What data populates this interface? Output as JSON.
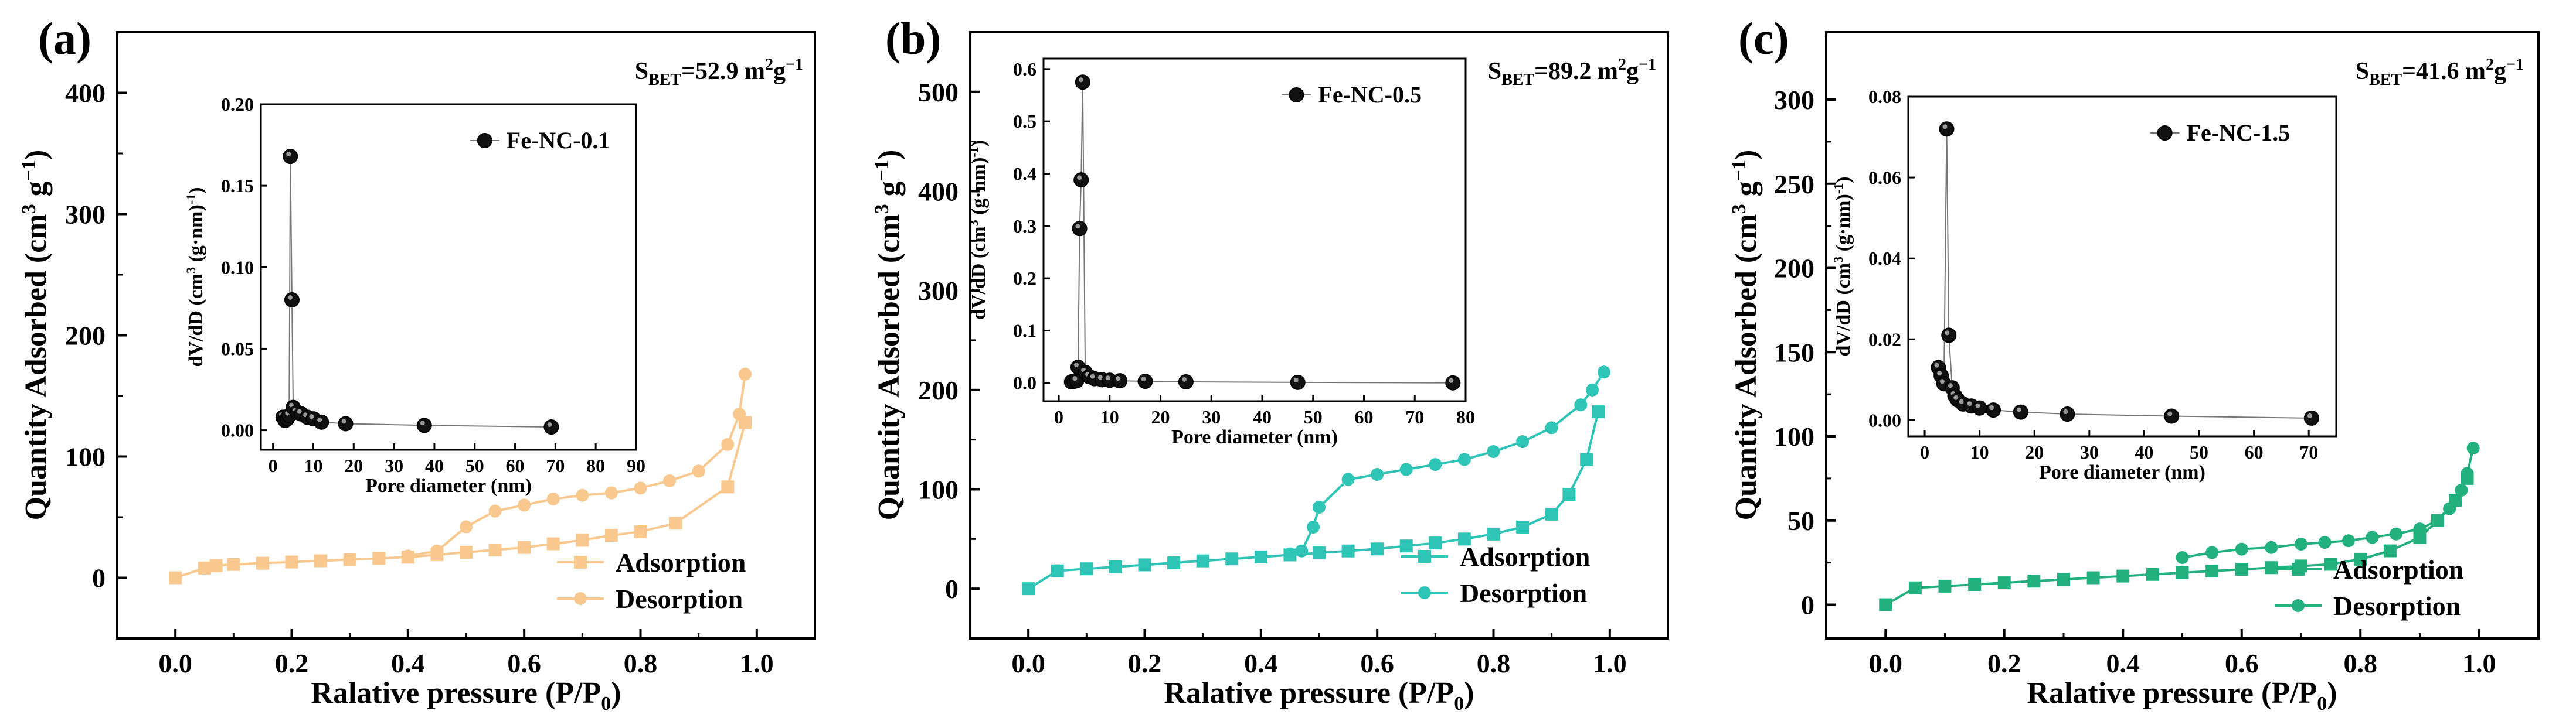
{
  "chart_data": [
    {
      "type": "line",
      "panel_label": "(a)",
      "sbet": {
        "prefix": "S",
        "sub": "BET",
        "value": "=52.9 m",
        "sup": "2",
        "suffix": "g",
        "sup2": "−1"
      },
      "xlabel": {
        "text": "Ralative pressure (P/P",
        "sub": "0",
        "tail": ")"
      },
      "ylabel": {
        "text": "Quantity Adsorbed (cm",
        "sup": "3",
        "mid": " g",
        "sup2": "−1",
        "tail": ")"
      },
      "xlim": [
        -0.1,
        1.1
      ],
      "ylim": [
        -50,
        450
      ],
      "xticks": [
        0.0,
        0.2,
        0.4,
        0.6,
        0.8,
        1.0
      ],
      "xtick_labels": [
        "0.0",
        "0.2",
        "0.4",
        "0.6",
        "0.8",
        "1.0"
      ],
      "yticks": [
        0,
        100,
        200,
        300,
        400
      ],
      "ytick_labels": [
        "0",
        "100",
        "200",
        "300",
        "400"
      ],
      "series": [
        {
          "name": "Adsorption",
          "marker": "square",
          "color": "#F9C88F",
          "x": [
            0.0,
            0.05,
            0.07,
            0.1,
            0.15,
            0.2,
            0.25,
            0.3,
            0.35,
            0.4,
            0.45,
            0.5,
            0.55,
            0.6,
            0.65,
            0.7,
            0.75,
            0.8,
            0.86,
            0.95,
            0.98
          ],
          "y": [
            0,
            8,
            10,
            11,
            12,
            13,
            14,
            15,
            16,
            17,
            19,
            21,
            23,
            25,
            28,
            31,
            35,
            38,
            45,
            75,
            128
          ]
        },
        {
          "name": "Desorption",
          "marker": "circle",
          "color": "#F9C88F",
          "x": [
            0.98,
            0.97,
            0.95,
            0.9,
            0.85,
            0.8,
            0.75,
            0.7,
            0.65,
            0.6,
            0.55,
            0.5,
            0.45,
            0.4
          ],
          "y": [
            168,
            135,
            110,
            88,
            80,
            74,
            70,
            68,
            65,
            60,
            55,
            42,
            22,
            18
          ]
        }
      ],
      "legend": [
        "Adsorption",
        "Desorption"
      ],
      "inset": {
        "type": "scatter",
        "series_name": "Fe-NC-0.1",
        "xlabel": "Pore diameter (nm)",
        "ylabel": {
          "text": "dV/dD (cm",
          "sup": "3",
          "tail": " (g·nm)",
          "sup2": "-1",
          "end": ")"
        },
        "xlim": [
          -3,
          90
        ],
        "ylim": [
          -0.012,
          0.2
        ],
        "xticks": [
          0,
          10,
          20,
          30,
          40,
          50,
          60,
          70,
          80,
          90
        ],
        "xtick_labels": [
          "0",
          "10",
          "20",
          "30",
          "40",
          "50",
          "60",
          "70",
          "80",
          "90"
        ],
        "yticks": [
          0.0,
          0.05,
          0.1,
          0.15,
          0.2
        ],
        "ytick_labels": [
          "0.00",
          "0.05",
          "0.10",
          "0.15",
          "0.20"
        ],
        "x": [
          2.5,
          3.0,
          3.5,
          4.0,
          4.3,
          4.7,
          5.0,
          6.0,
          7.0,
          8.5,
          10.0,
          12.0,
          18.0,
          37.5,
          69.0
        ],
        "y": [
          0.008,
          0.006,
          0.007,
          0.009,
          0.168,
          0.08,
          0.014,
          0.011,
          0.01,
          0.008,
          0.007,
          0.005,
          0.004,
          0.003,
          0.002
        ]
      }
    },
    {
      "type": "line",
      "panel_label": "(b)",
      "sbet": {
        "prefix": "S",
        "sub": "BET",
        "value": "=89.2 m",
        "sup": "2",
        "suffix": "g",
        "sup2": "−1"
      },
      "xlabel": {
        "text": "Ralative pressure (P/P",
        "sub": "0",
        "tail": ")"
      },
      "ylabel": {
        "text": "Quantity Adsorbed (cm",
        "sup": "3",
        "mid": " g",
        "sup2": "−1",
        "tail": ")"
      },
      "xlim": [
        -0.1,
        1.1
      ],
      "ylim": [
        -50,
        560
      ],
      "xticks": [
        0.0,
        0.2,
        0.4,
        0.6,
        0.8,
        1.0
      ],
      "xtick_labels": [
        "0.0",
        "0.2",
        "0.4",
        "0.6",
        "0.8",
        "1.0"
      ],
      "yticks": [
        0,
        100,
        200,
        300,
        400,
        500
      ],
      "ytick_labels": [
        "0",
        "100",
        "200",
        "300",
        "400",
        "500"
      ],
      "series": [
        {
          "name": "Adsorption",
          "marker": "square",
          "color": "#2EC4B6",
          "x": [
            0.0,
            0.05,
            0.1,
            0.15,
            0.2,
            0.25,
            0.3,
            0.35,
            0.4,
            0.45,
            0.5,
            0.55,
            0.6,
            0.65,
            0.7,
            0.75,
            0.8,
            0.85,
            0.9,
            0.93,
            0.96,
            0.98
          ],
          "y": [
            0,
            18,
            20,
            22,
            24,
            26,
            28,
            30,
            32,
            34,
            36,
            38,
            40,
            43,
            46,
            50,
            55,
            62,
            75,
            95,
            130,
            178
          ]
        },
        {
          "name": "Desorption",
          "marker": "circle",
          "color": "#2EC4B6",
          "x": [
            0.99,
            0.97,
            0.95,
            0.9,
            0.85,
            0.8,
            0.75,
            0.7,
            0.65,
            0.6,
            0.55,
            0.5,
            0.49,
            0.47,
            0.45
          ],
          "y": [
            218,
            200,
            185,
            162,
            148,
            138,
            130,
            125,
            120,
            115,
            110,
            82,
            62,
            38,
            35
          ]
        }
      ],
      "legend": [
        "Adsorption",
        "Desorption"
      ],
      "inset": {
        "type": "scatter",
        "series_name": "Fe-NC-0.5",
        "xlabel": "Pore diameter (nm)",
        "ylabel": {
          "text": "dV/dD (cm",
          "sup": "3",
          "tail": " (g·nm)",
          "sup2": "-1",
          "end": ")"
        },
        "xlim": [
          -3,
          80
        ],
        "ylim": [
          -0.035,
          0.62
        ],
        "xticks": [
          0,
          10,
          20,
          30,
          40,
          50,
          60,
          70,
          80
        ],
        "xtick_labels": [
          "0",
          "10",
          "20",
          "30",
          "40",
          "50",
          "60",
          "70",
          "80"
        ],
        "yticks": [
          0.0,
          0.1,
          0.2,
          0.3,
          0.4,
          0.5,
          0.6
        ],
        "ytick_labels": [
          "0.0",
          "0.1",
          "0.2",
          "0.3",
          "0.4",
          "0.5",
          "0.6"
        ],
        "x": [
          2.5,
          3.0,
          3.5,
          3.8,
          4.1,
          4.4,
          4.7,
          5.2,
          6.0,
          7.0,
          8.5,
          10.0,
          12.0,
          17.0,
          25.0,
          47.0,
          77.5
        ],
        "y": [
          0.002,
          0.003,
          0.004,
          0.03,
          0.295,
          0.388,
          0.575,
          0.02,
          0.012,
          0.008,
          0.006,
          0.005,
          0.004,
          0.003,
          0.002,
          0.001,
          0.0
        ]
      }
    },
    {
      "type": "line",
      "panel_label": "(c)",
      "sbet": {
        "prefix": "S",
        "sub": "BET",
        "value": "=41.6 m",
        "sup": "2",
        "suffix": "g",
        "sup2": "−1"
      },
      "xlabel": {
        "text": "Ralative pressure (P/P",
        "sub": "0",
        "tail": ")"
      },
      "ylabel": {
        "text": "Quantity Adsorbed (cm",
        "sup": "3",
        "mid": " g",
        "sup2": "−1",
        "tail": ")"
      },
      "xlim": [
        -0.1,
        1.1
      ],
      "ylim": [
        -20,
        340
      ],
      "xticks": [
        0.0,
        0.2,
        0.4,
        0.6,
        0.8,
        1.0
      ],
      "xtick_labels": [
        "0.0",
        "0.2",
        "0.4",
        "0.6",
        "0.8",
        "1.0"
      ],
      "yticks": [
        0,
        50,
        100,
        150,
        200,
        250,
        300
      ],
      "ytick_labels": [
        "0",
        "50",
        "100",
        "150",
        "200",
        "250",
        "300"
      ],
      "series": [
        {
          "name": "Adsorption",
          "marker": "square",
          "color": "#21B07E",
          "x": [
            0.0,
            0.05,
            0.1,
            0.15,
            0.2,
            0.25,
            0.3,
            0.35,
            0.4,
            0.45,
            0.5,
            0.55,
            0.6,
            0.65,
            0.7,
            0.75,
            0.8,
            0.85,
            0.9,
            0.93,
            0.96,
            0.98
          ],
          "y": [
            0,
            10,
            11,
            12,
            13,
            14,
            15,
            16,
            17,
            18,
            19,
            20,
            21,
            22,
            23,
            24,
            27,
            32,
            40,
            50,
            62,
            75
          ]
        },
        {
          "name": "Desorption",
          "marker": "circle",
          "color": "#21B07E",
          "x": [
            0.99,
            0.98,
            0.97,
            0.95,
            0.93,
            0.9,
            0.86,
            0.82,
            0.78,
            0.74,
            0.7,
            0.65,
            0.6,
            0.55,
            0.5
          ],
          "y": [
            93,
            78,
            68,
            57,
            50,
            45,
            42,
            40,
            38,
            37,
            36,
            34,
            33,
            31,
            28
          ]
        }
      ],
      "legend": [
        "Adsorption",
        "Desorption"
      ],
      "inset": {
        "type": "scatter",
        "series_name": "Fe-NC-1.5",
        "xlabel": "Pore diameter (nm)",
        "ylabel": {
          "text": "dV/dD (cm",
          "sup": "3",
          "tail": " (g·nm)",
          "sup2": "-1",
          "end": ")"
        },
        "xlim": [
          -3,
          75
        ],
        "ylim": [
          -0.004,
          0.08
        ],
        "xticks": [
          0,
          10,
          20,
          30,
          40,
          50,
          60,
          70
        ],
        "xtick_labels": [
          "0",
          "10",
          "20",
          "30",
          "40",
          "50",
          "60",
          "70"
        ],
        "yticks": [
          0.0,
          0.02,
          0.04,
          0.06,
          0.08
        ],
        "ytick_labels": [
          "0.00",
          "0.02",
          "0.04",
          "0.06",
          "0.08"
        ],
        "x": [
          2.5,
          3.0,
          3.5,
          4.0,
          4.4,
          5.0,
          5.5,
          6.0,
          7.0,
          8.5,
          10.0,
          12.5,
          17.5,
          26.0,
          45.0,
          70.5
        ],
        "y": [
          0.013,
          0.011,
          0.009,
          0.072,
          0.021,
          0.008,
          0.006,
          0.005,
          0.004,
          0.0035,
          0.003,
          0.0025,
          0.002,
          0.0015,
          0.001,
          0.0005
        ]
      }
    }
  ]
}
